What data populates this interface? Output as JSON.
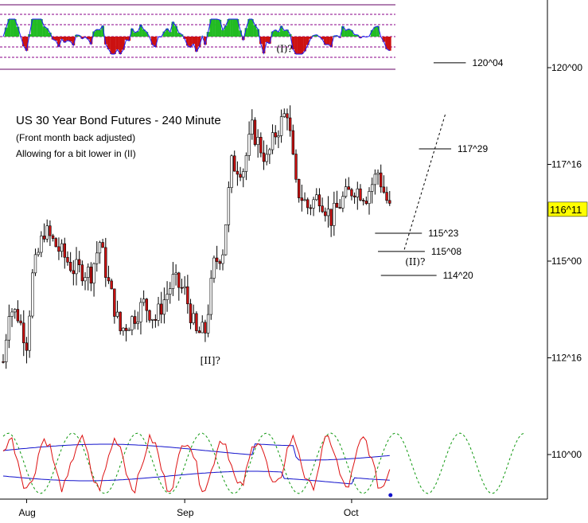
{
  "chart_data": {
    "type": "candlestick",
    "title": "US 30 Year Bond Futures - 240 Minute",
    "subtitle_lines": [
      "(Front month back adjusted)",
      "Allowing for a bit lower in (II)"
    ],
    "y_axis": {
      "ticks": [
        {
          "value": 110.0,
          "label": "110^00"
        },
        {
          "value": 112.5,
          "label": "112^16"
        },
        {
          "value": 115.0,
          "label": "115^00"
        },
        {
          "value": 117.5,
          "label": "117^16"
        },
        {
          "value": 120.0,
          "label": "120^00"
        }
      ],
      "current_price": {
        "value": 116.34,
        "label": "116^11",
        "color": "#ffff00"
      }
    },
    "x_axis": {
      "ticks": [
        {
          "bar": 8,
          "label": "Aug"
        },
        {
          "bar": 62,
          "label": "Sep"
        },
        {
          "bar": 119,
          "label": "Oct"
        }
      ],
      "total_slots": 180,
      "last_bar": 132
    },
    "price_anchors": [
      [
        0,
        112.4
      ],
      [
        2,
        113.8
      ],
      [
        5,
        113.6
      ],
      [
        8,
        112.9
      ],
      [
        10,
        114.6
      ],
      [
        14,
        115.8
      ],
      [
        18,
        115.4
      ],
      [
        24,
        114.8
      ],
      [
        30,
        114.7
      ],
      [
        33,
        115.5
      ],
      [
        36,
        114.4
      ],
      [
        40,
        113.2
      ],
      [
        44,
        113.5
      ],
      [
        48,
        113.9
      ],
      [
        52,
        113.5
      ],
      [
        58,
        114.5
      ],
      [
        62,
        114.2
      ],
      [
        66,
        113.1
      ],
      [
        69,
        113.2
      ],
      [
        72,
        114.9
      ],
      [
        75,
        115.3
      ],
      [
        78,
        117.5
      ],
      [
        82,
        117.4
      ],
      [
        85,
        118.4
      ],
      [
        90,
        117.6
      ],
      [
        93,
        118.3
      ],
      [
        97,
        118.9
      ],
      [
        100,
        116.9
      ],
      [
        104,
        116.4
      ],
      [
        108,
        116.7
      ],
      [
        112,
        116.1
      ],
      [
        116,
        116.6
      ],
      [
        120,
        116.9
      ],
      [
        124,
        116.7
      ],
      [
        128,
        117.3
      ],
      [
        130,
        116.8
      ],
      [
        132,
        116.34
      ]
    ],
    "wave_labels": [
      {
        "text": "(I)?",
        "bar": 96,
        "value": 120.4
      },
      {
        "text": "[II]?",
        "bar": 70,
        "value": 112.35
      },
      {
        "text": "(II)?",
        "bar": 140,
        "value": 114.9
      }
    ],
    "levels": [
      {
        "label": "120^04",
        "value": 120.125,
        "from_bar": 147,
        "to_bar": 158
      },
      {
        "label": "117^29",
        "value": 117.9,
        "from_bar": 142,
        "to_bar": 153
      },
      {
        "label": "115^23",
        "value": 115.72,
        "from_bar": 127,
        "to_bar": 143
      },
      {
        "label": "115^08",
        "value": 115.25,
        "from_bar": 128,
        "to_bar": 144
      },
      {
        "label": "114^20",
        "value": 114.63,
        "from_bar": 129,
        "to_bar": 148
      }
    ],
    "projection": {
      "from": [
        137,
        115.3
      ],
      "to": [
        151,
        118.8
      ],
      "style": "dashed"
    },
    "top_oscillator": {
      "type": "histogram",
      "positive_color": "#22bb22",
      "negative_color": "#cc1111",
      "line_color": "#1a1aff",
      "range": [
        -1,
        1
      ]
    },
    "bottom_oscillator": {
      "series": [
        {
          "color": "#dd1111",
          "kind": "price-cycle"
        },
        {
          "color": "#1111cc",
          "kind": "band-upper"
        },
        {
          "color": "#1111cc",
          "kind": "band-lower"
        },
        {
          "color": "#119911",
          "kind": "projected-cycle",
          "style": "dashed"
        }
      ]
    },
    "colors": {
      "up": "#ffffff",
      "down": "#cc1111",
      "wick": "#000000"
    }
  }
}
